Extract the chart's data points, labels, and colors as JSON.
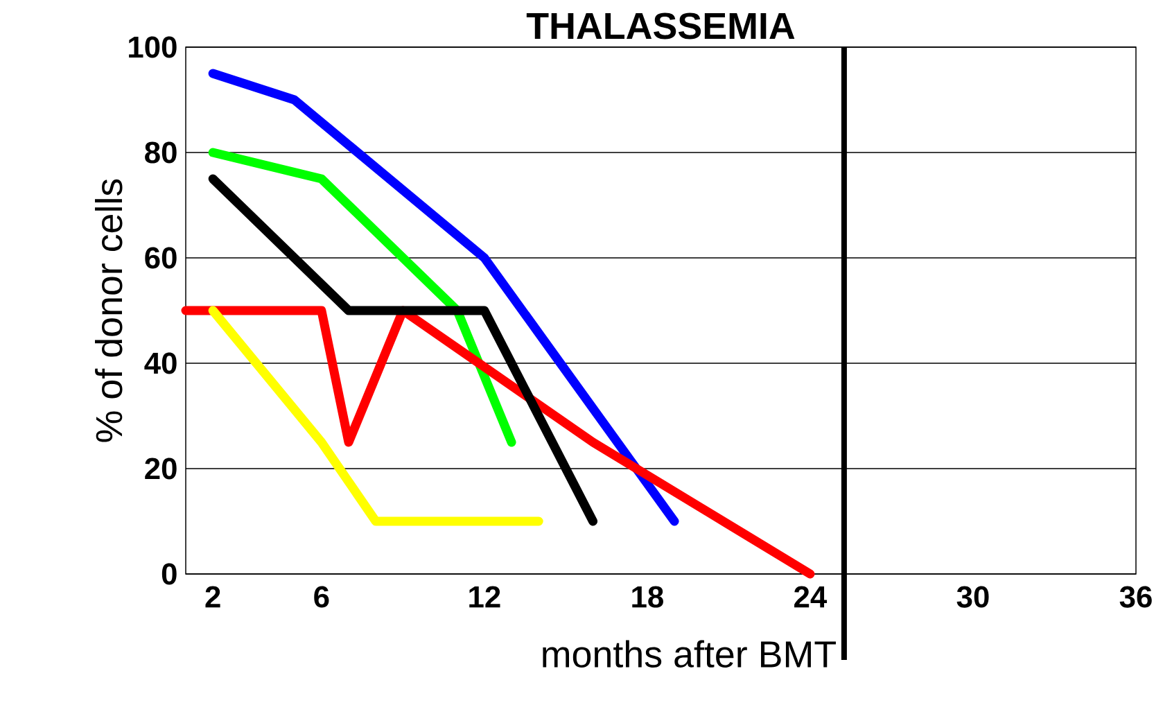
{
  "chart_data": {
    "type": "line",
    "title": "THALASSEMIA",
    "xlabel": "months after BMT",
    "ylabel": "% of donor  cells",
    "xlim": [
      1,
      36
    ],
    "xticks": [
      2,
      6,
      12,
      18,
      24,
      30,
      36
    ],
    "ylim": [
      0,
      100
    ],
    "yticks": [
      0,
      20,
      40,
      60,
      80,
      100
    ],
    "grid": "y",
    "marker": "none",
    "line_style": "solid",
    "ref_lines": [
      {
        "axis": "x",
        "value": 25.25,
        "color": "#000000"
      }
    ],
    "series": [
      {
        "color": "#0000ff",
        "x": [
          2,
          5,
          12,
          19
        ],
        "values": [
          95,
          90,
          60,
          10
        ]
      },
      {
        "color": "#00ff00",
        "x": [
          2,
          6,
          11,
          13
        ],
        "values": [
          80,
          75,
          50,
          25
        ]
      },
      {
        "color": "#ff0000",
        "x": [
          1,
          6,
          7,
          9,
          16,
          24
        ],
        "values": [
          50,
          50,
          25,
          50,
          25,
          0
        ]
      },
      {
        "color": "#000000",
        "x": [
          2,
          7,
          12,
          16
        ],
        "values": [
          75,
          50,
          50,
          10
        ]
      },
      {
        "color": "#ffff00",
        "x": [
          2,
          6,
          8,
          14
        ],
        "values": [
          50,
          25,
          10,
          10
        ]
      }
    ]
  }
}
